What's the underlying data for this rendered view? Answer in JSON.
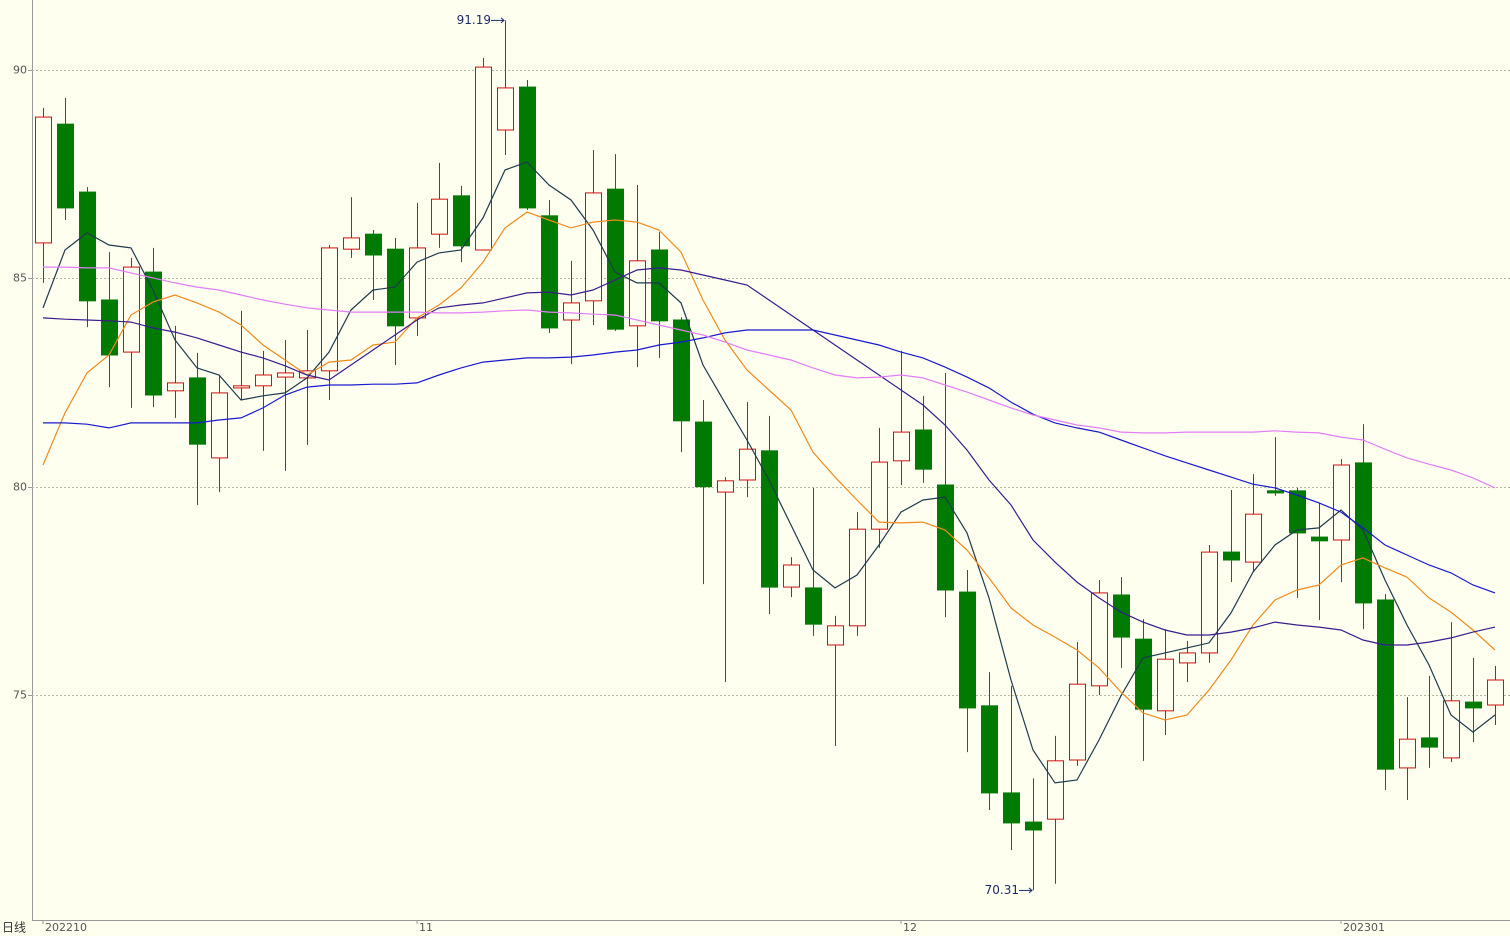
{
  "chart_data": {
    "type": "candlestick",
    "period": "日线",
    "categories": [
      "202210",
      null,
      null,
      null,
      null,
      null,
      null,
      null,
      null,
      null,
      null,
      null,
      null,
      null,
      null,
      null,
      null,
      "11",
      null,
      null,
      null,
      null,
      null,
      null,
      null,
      null,
      null,
      null,
      null,
      null,
      null,
      null,
      null,
      null,
      null,
      null,
      null,
      null,
      null,
      "12",
      null,
      null,
      null,
      null,
      null,
      null,
      null,
      null,
      null,
      null,
      null,
      null,
      null,
      null,
      null,
      null,
      null,
      null,
      null,
      "202301",
      null,
      null,
      null,
      null,
      null,
      null,
      null
    ],
    "open": [
      85.85,
      88.7,
      87.07,
      84.48,
      83.23,
      85.15,
      82.3,
      82.61,
      80.69,
      82.37,
      82.42,
      82.63,
      82.61,
      82.78,
      85.7,
      86.06,
      85.7,
      84.05,
      86.06,
      86.98,
      85.68,
      88.56,
      89.59,
      86.5,
      84.0,
      84.46,
      87.14,
      83.86,
      85.68,
      84.0,
      81.55,
      79.87,
      80.16,
      80.86,
      77.59,
      77.57,
      76.2,
      76.66,
      78.98,
      80.62,
      81.36,
      80.04,
      77.47,
      74.74,
      72.65,
      71.95,
      72.02,
      73.44,
      75.22,
      77.4,
      76.34,
      74.62,
      75.77,
      76.01,
      78.43,
      78.19,
      79.9,
      79.9,
      78.79,
      78.72,
      80.57,
      77.28,
      73.25,
      73.97,
      73.49,
      74.83,
      74.76
    ],
    "high": [
      89.09,
      89.33,
      87.19,
      85.63,
      85.49,
      85.73,
      83.86,
      83.21,
      82.68,
      84.22,
      83.26,
      83.52,
      83.76,
      85.8,
      86.95,
      86.16,
      85.97,
      86.81,
      87.77,
      87.22,
      90.29,
      91.19,
      89.76,
      86.88,
      85.42,
      88.08,
      87.98,
      87.24,
      86.11,
      84.07,
      82.08,
      80.23,
      82.03,
      81.7,
      78.31,
      79.97,
      76.9,
      79.39,
      81.41,
      83.26,
      82.18,
      82.73,
      78.0,
      75.55,
      75.22,
      73.0,
      74.02,
      76.27,
      77.76,
      77.83,
      76.82,
      76.58,
      76.3,
      78.6,
      79.92,
      80.3,
      81.19,
      79.97,
      79.61,
      80.66,
      81.5,
      77.42,
      74.95,
      75.46,
      76.75,
      75.89,
      75.7
    ],
    "low": [
      84.89,
      86.4,
      83.83,
      82.39,
      81.89,
      81.91,
      81.65,
      79.56,
      79.87,
      82.08,
      80.86,
      80.38,
      81.0,
      82.08,
      85.49,
      84.48,
      82.92,
      83.62,
      85.73,
      85.39,
      85.68,
      87.96,
      86.64,
      83.69,
      82.94,
      83.88,
      83.74,
      82.87,
      83.09,
      80.83,
      77.66,
      75.31,
      79.75,
      76.94,
      77.35,
      76.42,
      73.78,
      76.42,
      78.53,
      80.04,
      80.09,
      76.87,
      73.63,
      72.24,
      71.28,
      70.31,
      70.47,
      73.3,
      75.0,
      75.65,
      73.42,
      74.04,
      75.31,
      75.77,
      77.71,
      77.95,
      79.78,
      77.33,
      76.8,
      77.71,
      76.58,
      72.72,
      72.48,
      73.25,
      73.39,
      73.87,
      74.28
    ],
    "close": [
      88.87,
      86.69,
      84.46,
      83.16,
      85.27,
      82.2,
      82.49,
      81.02,
      82.25,
      82.42,
      82.68,
      82.73,
      82.78,
      85.73,
      85.97,
      85.56,
      83.86,
      85.73,
      86.9,
      85.78,
      90.07,
      89.57,
      86.69,
      83.81,
      84.41,
      87.05,
      83.78,
      85.42,
      83.98,
      81.58,
      80.0,
      80.14,
      80.9,
      77.59,
      78.12,
      76.7,
      76.66,
      78.98,
      80.59,
      81.31,
      80.42,
      77.52,
      74.69,
      72.65,
      71.93,
      71.76,
      73.42,
      75.26,
      77.45,
      76.39,
      74.66,
      75.86,
      76.01,
      78.43,
      78.24,
      79.34,
      79.85,
      78.89,
      78.7,
      80.52,
      77.21,
      73.22,
      73.94,
      73.75,
      74.86,
      74.69,
      75.36
    ],
    "up_color": "#cc1010",
    "down_color": "#007a00",
    "series": [
      {
        "color": "#1e3a4c",
        "values": [
          84.29,
          85.68,
          86.09,
          85.8,
          85.73,
          84.72,
          83.52,
          82.85,
          82.68,
          82.08,
          82.18,
          82.25,
          82.61,
          83.23,
          84.24,
          84.72,
          84.79,
          85.39,
          85.61,
          85.68,
          86.45,
          87.6,
          87.79,
          87.24,
          86.88,
          86.16,
          85.15,
          84.89,
          84.89,
          84.41,
          82.92,
          82.01,
          81.12,
          80.16,
          79.08,
          78.0,
          77.57,
          77.88,
          78.6,
          79.39,
          79.68,
          79.75,
          78.89,
          77.33,
          75.36,
          73.68,
          72.89,
          72.96,
          73.92,
          74.98,
          75.89,
          76.01,
          76.13,
          76.25,
          76.97,
          77.95,
          78.6,
          78.96,
          79.01,
          79.44,
          78.96,
          77.76,
          76.68,
          75.72,
          74.52,
          74.11,
          74.52
        ]
      },
      {
        "color": "#f08a1c",
        "values": [
          80.52,
          81.77,
          82.73,
          83.16,
          84.12,
          84.43,
          84.6,
          84.41,
          84.19,
          83.88,
          83.4,
          83.04,
          82.68,
          82.99,
          83.04,
          83.4,
          83.47,
          84.05,
          84.36,
          84.77,
          85.39,
          86.21,
          86.59,
          86.4,
          86.21,
          86.35,
          86.4,
          86.35,
          86.16,
          85.63,
          84.48,
          83.52,
          82.8,
          82.32,
          81.84,
          80.83,
          80.23,
          79.68,
          79.15,
          79.13,
          79.15,
          78.96,
          78.48,
          77.81,
          77.09,
          76.68,
          76.39,
          76.08,
          75.65,
          75.07,
          74.57,
          74.4,
          74.52,
          75.12,
          75.84,
          76.68,
          77.28,
          77.52,
          77.64,
          78.12,
          78.29,
          78.05,
          77.83,
          77.33,
          76.99,
          76.56,
          76.08
        ]
      },
      {
        "color": "#3a1c8e",
        "values": [
          84.05,
          84.02,
          84.0,
          83.98,
          83.95,
          83.81,
          83.71,
          83.57,
          83.4,
          83.23,
          83.09,
          82.9,
          82.68,
          82.56,
          82.92,
          83.28,
          83.64,
          84.0,
          84.29,
          84.36,
          84.41,
          84.53,
          84.65,
          84.67,
          84.6,
          84.72,
          84.96,
          85.2,
          85.25,
          85.2,
          85.08,
          84.96,
          84.84,
          84.48,
          84.12,
          83.76,
          83.4,
          83.04,
          82.68,
          82.32,
          81.96,
          81.48,
          80.88,
          80.16,
          79.56,
          78.72,
          78.19,
          77.71,
          77.33,
          76.99,
          76.75,
          76.56,
          76.44,
          76.44,
          76.51,
          76.61,
          76.75,
          76.68,
          76.63,
          76.56,
          76.32,
          76.2,
          76.2,
          76.27,
          76.37,
          76.51,
          76.63
        ]
      },
      {
        "color": "#1a1acd",
        "values": [
          81.53,
          81.53,
          81.5,
          81.41,
          81.53,
          81.53,
          81.53,
          81.53,
          81.6,
          81.65,
          81.89,
          82.2,
          82.39,
          82.44,
          82.44,
          82.46,
          82.46,
          82.49,
          82.68,
          82.85,
          82.99,
          83.04,
          83.09,
          83.09,
          83.11,
          83.16,
          83.23,
          83.28,
          83.4,
          83.47,
          83.57,
          83.69,
          83.76,
          83.76,
          83.76,
          83.76,
          83.64,
          83.52,
          83.4,
          83.23,
          83.09,
          82.87,
          82.63,
          82.37,
          82.03,
          81.74,
          81.53,
          81.41,
          81.31,
          81.12,
          80.93,
          80.74,
          80.57,
          80.4,
          80.23,
          80.06,
          79.97,
          79.8,
          79.61,
          79.39,
          79.01,
          78.6,
          78.36,
          78.12,
          77.93,
          77.64,
          77.45
        ]
      },
      {
        "color": "#e27ef5",
        "values": [
          85.27,
          85.27,
          85.25,
          85.25,
          85.13,
          85.01,
          84.89,
          84.79,
          84.72,
          84.6,
          84.48,
          84.38,
          84.29,
          84.24,
          84.19,
          84.19,
          84.19,
          84.19,
          84.17,
          84.17,
          84.19,
          84.22,
          84.24,
          84.19,
          84.17,
          84.14,
          84.12,
          84.0,
          83.88,
          83.76,
          83.64,
          83.47,
          83.28,
          83.16,
          83.04,
          82.85,
          82.68,
          82.61,
          82.63,
          82.68,
          82.61,
          82.44,
          82.27,
          82.08,
          81.89,
          81.72,
          81.6,
          81.48,
          81.41,
          81.31,
          81.29,
          81.29,
          81.31,
          81.31,
          81.31,
          81.31,
          81.34,
          81.31,
          81.29,
          81.19,
          81.12,
          80.9,
          80.69,
          80.54,
          80.4,
          80.21,
          79.97
        ]
      }
    ],
    "ylim": [
      69.6,
      91.68
    ],
    "yticks": [
      75,
      80,
      85,
      90
    ],
    "grid": true
  }
}
